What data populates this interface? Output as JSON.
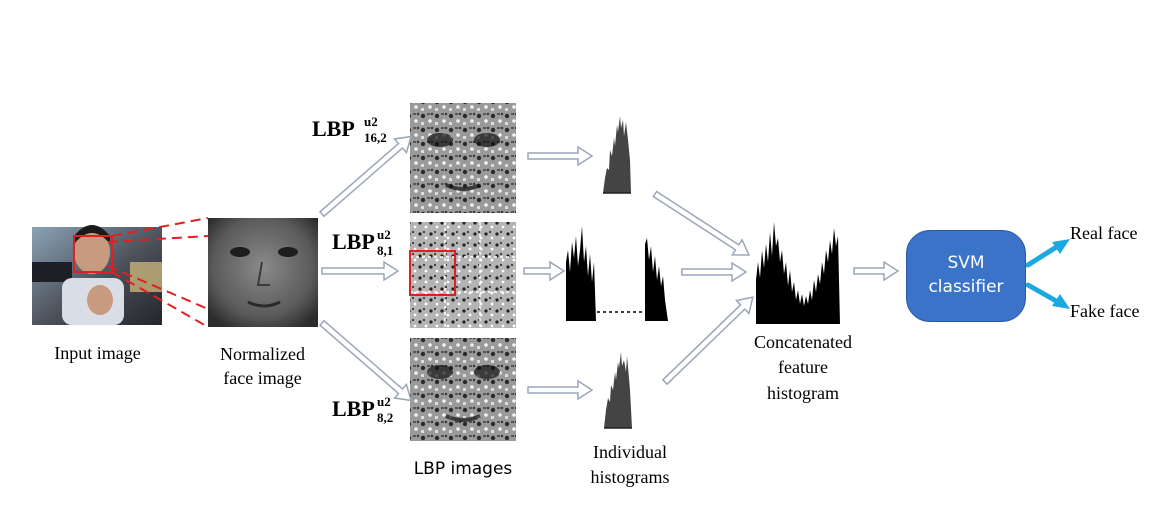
{
  "labels": {
    "input_image": "Input image",
    "normalized_line1": "Normalized",
    "normalized_line2": "face image",
    "lbp_images": "LBP images",
    "individual_line1": "Individual",
    "individual_line2": "histograms",
    "concat_line1": "Concatenated",
    "concat_line2": "feature",
    "concat_line3": "histogram",
    "svm_line1": "SVM",
    "svm_line2": "classifier",
    "real_face": "Real face",
    "fake_face": "Fake face"
  },
  "operators": [
    {
      "base": "LBP",
      "sup": "u2",
      "sub": "16,2"
    },
    {
      "base": "LBP",
      "sup": "u2",
      "sub": "8,1"
    },
    {
      "base": "LBP",
      "sup": "u2",
      "sub": "8,2"
    }
  ],
  "colors": {
    "svm_fill": "#3b73c9",
    "output_arrow": "#1ea8e0",
    "dashed_red": "#e02020",
    "hollow_arrow": "#9aa6b8"
  }
}
